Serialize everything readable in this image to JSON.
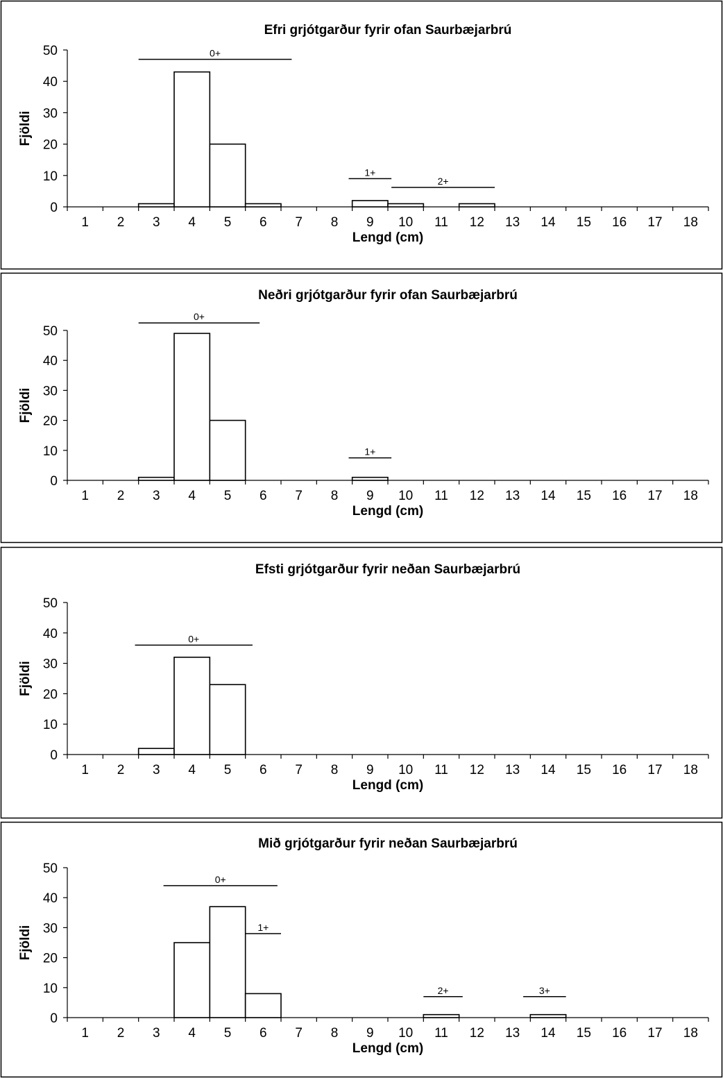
{
  "chart_data": [
    {
      "type": "bar",
      "title": "Efri grjótgarður fyrir ofan Saurbæjarbrú",
      "xlabel": "Lengd (cm)",
      "ylabel": "Fjöldi",
      "categories": [
        "1",
        "2",
        "3",
        "4",
        "5",
        "6",
        "7",
        "8",
        "9",
        "10",
        "11",
        "12",
        "13",
        "14",
        "15",
        "16",
        "17",
        "18"
      ],
      "values": [
        0,
        0,
        1,
        43,
        20,
        1,
        0,
        0,
        2,
        1,
        0,
        1,
        0,
        0,
        0,
        0,
        0,
        0
      ],
      "ylim": [
        0,
        50
      ],
      "yticks": [
        "0",
        "10",
        "20",
        "30",
        "40",
        "50"
      ],
      "grid": false,
      "age_groups": [
        {
          "label": "0+",
          "from": 2.5,
          "to": 6.8,
          "level": 47
        },
        {
          "label": "1+",
          "from": 8.4,
          "to": 9.6,
          "level": 9
        },
        {
          "label": "2+",
          "from": 9.6,
          "to": 12.5,
          "level": 6.2
        }
      ]
    },
    {
      "type": "bar",
      "title": "Neðri grjótgarður fyrir ofan Saurbæjarbrú",
      "xlabel": "Lengd (cm)",
      "ylabel": "Fjöldi",
      "categories": [
        "1",
        "2",
        "3",
        "4",
        "5",
        "6",
        "7",
        "8",
        "9",
        "10",
        "11",
        "12",
        "13",
        "14",
        "15",
        "16",
        "17",
        "18"
      ],
      "values": [
        0,
        0,
        1,
        49,
        20,
        0,
        0,
        0,
        1,
        0,
        0,
        0,
        0,
        0,
        0,
        0,
        0,
        0
      ],
      "ylim": [
        0,
        50
      ],
      "yticks": [
        "0",
        "10",
        "20",
        "30",
        "40",
        "50"
      ],
      "grid": false,
      "age_groups": [
        {
          "label": "0+",
          "from": 2.5,
          "to": 5.9,
          "level": 52.5
        },
        {
          "label": "1+",
          "from": 8.4,
          "to": 9.6,
          "level": 7.5
        }
      ]
    },
    {
      "type": "bar",
      "title": "Efsti grjótgarður fyrir neðan Saurbæjarbrú",
      "xlabel": "Lengd (cm)",
      "ylabel": "Fjöldi",
      "categories": [
        "1",
        "2",
        "3",
        "4",
        "5",
        "6",
        "7",
        "8",
        "9",
        "10",
        "11",
        "12",
        "13",
        "14",
        "15",
        "16",
        "17",
        "18"
      ],
      "values": [
        0,
        0,
        2,
        32,
        23,
        0,
        0,
        0,
        0,
        0,
        0,
        0,
        0,
        0,
        0,
        0,
        0,
        0
      ],
      "ylim": [
        0,
        50
      ],
      "yticks": [
        "0",
        "10",
        "20",
        "30",
        "40",
        "50"
      ],
      "grid": false,
      "age_groups": [
        {
          "label": "0+",
          "from": 2.4,
          "to": 5.7,
          "level": 36
        }
      ]
    },
    {
      "type": "bar",
      "title": "Mið grjótgarður fyrir neðan Saurbæjarbrú",
      "xlabel": "Lengd (cm)",
      "ylabel": "Fjöldi",
      "categories": [
        "1",
        "2",
        "3",
        "4",
        "5",
        "6",
        "7",
        "8",
        "9",
        "10",
        "11",
        "12",
        "13",
        "14",
        "15",
        "16",
        "17",
        "18"
      ],
      "values": [
        0,
        0,
        0,
        25,
        37,
        8,
        0,
        0,
        0,
        0,
        1,
        0,
        0,
        1,
        0,
        0,
        0,
        0
      ],
      "ylim": [
        0,
        50
      ],
      "yticks": [
        "0",
        "10",
        "20",
        "30",
        "40",
        "50"
      ],
      "grid": false,
      "age_groups": [
        {
          "label": "0+",
          "from": 3.2,
          "to": 6.4,
          "level": 44
        },
        {
          "label": "1+",
          "from": 5.5,
          "to": 6.5,
          "level": 28
        },
        {
          "label": "2+",
          "from": 10.5,
          "to": 11.6,
          "level": 7
        },
        {
          "label": "3+",
          "from": 13.3,
          "to": 14.5,
          "level": 7
        }
      ]
    }
  ]
}
